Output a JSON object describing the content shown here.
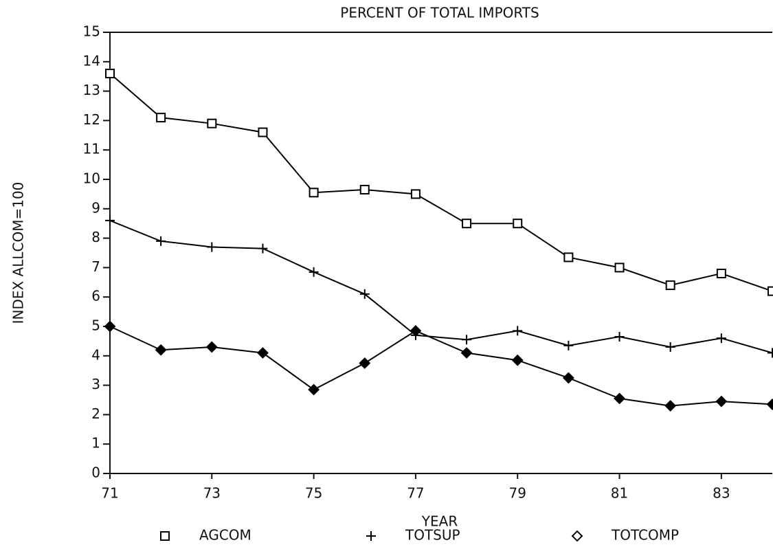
{
  "chart_data": {
    "type": "line",
    "title": "PERCENT OF TOTAL IMPORTS",
    "xlabel": "YEAR",
    "ylabel": "INDEX ALLCOM=100",
    "x": [
      71,
      72,
      73,
      74,
      75,
      76,
      77,
      78,
      79,
      80,
      81,
      82,
      83,
      84
    ],
    "series": [
      {
        "name": "AGCOM",
        "color": "#000000",
        "marker": "square",
        "values": [
          13.6,
          12.1,
          11.9,
          11.6,
          9.55,
          9.65,
          9.5,
          8.5,
          8.5,
          7.35,
          7.0,
          6.4,
          6.8,
          6.2
        ]
      },
      {
        "name": "TOTSUP",
        "color": "#000000",
        "marker": "plus",
        "values": [
          8.6,
          7.9,
          7.7,
          7.65,
          6.85,
          6.1,
          4.7,
          4.55,
          4.85,
          4.35,
          4.65,
          4.3,
          4.6,
          4.1
        ]
      },
      {
        "name": "TOTCOMP",
        "color": "#000000",
        "marker": "diamond",
        "values": [
          5.0,
          4.2,
          4.3,
          4.1,
          2.85,
          3.75,
          4.85,
          4.1,
          3.85,
          3.25,
          2.55,
          2.3,
          2.45,
          2.35
        ]
      }
    ],
    "xlim": [
      71,
      84
    ],
    "xticks": [
      71,
      73,
      75,
      77,
      79,
      81,
      83
    ],
    "ylim": [
      0,
      15
    ],
    "yticks": [
      0,
      1,
      2,
      3,
      4,
      5,
      6,
      7,
      8,
      9,
      10,
      11,
      12,
      13,
      14,
      15
    ],
    "grid": false,
    "legend": "bottom"
  }
}
